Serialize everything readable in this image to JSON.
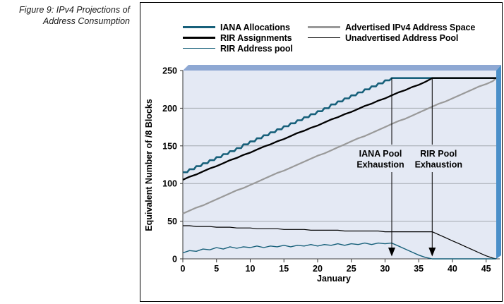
{
  "figure_caption": {
    "line1": "Figure 9: IPv4 Projections of",
    "line2": "Address Consumption"
  },
  "legend": {
    "items": [
      {
        "label": "IANA Allocations",
        "color": "#17607a",
        "thickness": 3,
        "column": 1
      },
      {
        "label": "RIR Assignments",
        "color": "#000000",
        "thickness": 3,
        "column": 1
      },
      {
        "label": "RIR Address pool",
        "color": "#17607a",
        "thickness": 1.5,
        "column": 1
      },
      {
        "label": "Advertised IPv4 Address Space",
        "color": "#999999",
        "thickness": 3,
        "column": 2
      },
      {
        "label": "Unadvertised Address Pool",
        "color": "#000000",
        "thickness": 1.5,
        "column": 2
      }
    ]
  },
  "colors": {
    "series_teal": "#17607a",
    "series_black": "#000000",
    "series_gray": "#999999",
    "plot_bg": "#e4e9f4",
    "grid": "#a2a7ae",
    "band_top": "#8ea8d3",
    "band_right": "#4a8fc9",
    "axis": "#333333"
  },
  "chart_data": {
    "type": "line",
    "title": "",
    "xlabel": "January",
    "ylabel": "Equivalent Number of /8 Blocks",
    "xlim": [
      0,
      46.5
    ],
    "ylim": [
      0,
      250
    ],
    "xticks": [
      0,
      5,
      10,
      15,
      20,
      25,
      30,
      35,
      40,
      45
    ],
    "yticks": [
      0,
      50,
      100,
      150,
      200,
      250
    ],
    "grid": "horizontal",
    "legend_position": "top",
    "x_unit": "days since start of January, value = series index",
    "annotations": [
      {
        "lines": [
          "IANA Pool",
          "Exhaustion"
        ],
        "x": 31,
        "arrow_from": 240,
        "arrow_to": 0,
        "label_dx": -16
      },
      {
        "lines": [
          "RIR Pool",
          "Exhaustion"
        ],
        "x": 37,
        "arrow_from": 240,
        "arrow_to": 0,
        "label_dx": 9
      }
    ],
    "series": [
      {
        "name": "Advertised IPv4 Address Space",
        "color": "#999999",
        "width": 2.2,
        "style": "line",
        "values": [
          60,
          64,
          68,
          71,
          75,
          79,
          83,
          87,
          91,
          94,
          98,
          102,
          106,
          110,
          114,
          117,
          121,
          125,
          129,
          133,
          137,
          140,
          144,
          148,
          152,
          156,
          160,
          163,
          167,
          171,
          175,
          179,
          183,
          186,
          190,
          194,
          198,
          202,
          206,
          209,
          213,
          217,
          221,
          225,
          229,
          232,
          236
        ],
        "tail": [
          46.5,
          240
        ]
      },
      {
        "name": "Unadvertised Address Pool",
        "color": "#000000",
        "width": 1.2,
        "style": "line",
        "values": [
          44,
          44,
          43,
          43,
          43,
          42,
          42,
          42,
          41,
          41,
          41,
          40,
          40,
          40,
          40,
          39,
          39,
          39,
          39,
          38,
          38,
          38,
          38,
          38,
          37,
          37,
          37,
          37,
          37,
          37,
          36,
          36,
          36,
          36,
          36,
          36,
          36,
          36,
          32,
          28,
          24,
          20,
          16,
          12,
          8,
          4,
          1
        ],
        "tail": [
          46.5,
          0
        ]
      },
      {
        "name": "RIR Address pool",
        "color": "#17607a",
        "width": 1.4,
        "style": "line",
        "values": [
          8,
          11,
          10,
          13,
          12,
          15,
          13,
          16,
          14,
          16,
          15,
          17,
          15,
          17,
          16,
          18,
          16,
          18,
          17,
          19,
          17,
          19,
          18,
          20,
          18,
          20,
          19,
          21,
          19,
          21,
          20,
          21,
          17,
          13,
          9,
          5,
          2,
          0,
          0,
          0,
          0,
          0,
          0,
          0,
          0,
          0,
          0
        ],
        "tail": [
          46.5,
          0
        ]
      },
      {
        "name": "IANA Allocations",
        "color": "#17607a",
        "width": 2.6,
        "style": "step",
        "values": [
          115,
          119,
          123,
          127,
          131,
          135,
          139,
          143,
          147,
          152,
          156,
          160,
          164,
          168,
          172,
          176,
          180,
          184,
          188,
          192,
          196,
          200,
          205,
          209,
          213,
          217,
          221,
          225,
          229,
          233,
          237,
          240,
          240,
          240,
          240,
          240,
          240,
          240,
          240,
          240,
          240,
          240,
          240,
          240,
          240,
          240,
          240
        ],
        "tail": [
          46.5,
          240
        ]
      },
      {
        "name": "RIR Assignments",
        "color": "#000000",
        "width": 2.3,
        "style": "line",
        "values": [
          105,
          109,
          112,
          116,
          120,
          123,
          127,
          131,
          134,
          138,
          141,
          145,
          149,
          152,
          156,
          159,
          163,
          167,
          170,
          174,
          177,
          181,
          185,
          188,
          192,
          195,
          199,
          203,
          206,
          210,
          213,
          217,
          221,
          224,
          228,
          231,
          235,
          240,
          240,
          240,
          240,
          240,
          240,
          240,
          240,
          240,
          240
        ],
        "tail": [
          46.5,
          240
        ]
      }
    ]
  }
}
